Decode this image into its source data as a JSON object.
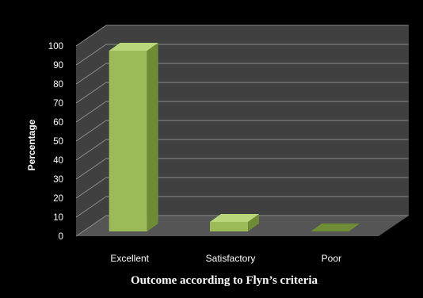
{
  "chart_data": {
    "type": "bar",
    "style": "3d",
    "categories": [
      "Excellent",
      "Satisfactory",
      "Poor"
    ],
    "values": [
      95,
      5,
      0
    ],
    "title": "",
    "xlabel": "Outcome according to Flyn’s criteria",
    "ylabel": "Percentage",
    "ylim": [
      0,
      100
    ],
    "yticks": [
      0,
      10,
      20,
      30,
      40,
      50,
      60,
      70,
      80,
      90,
      100
    ],
    "grid": true,
    "legend": "none",
    "colors": {
      "background": "#000000",
      "wall": "#404040",
      "floor": "#555555",
      "gridline": "#8a8a8a",
      "bar_front": "#9bbb59",
      "bar_top": "#b9d77a",
      "bar_side": "#6e8c35"
    }
  }
}
